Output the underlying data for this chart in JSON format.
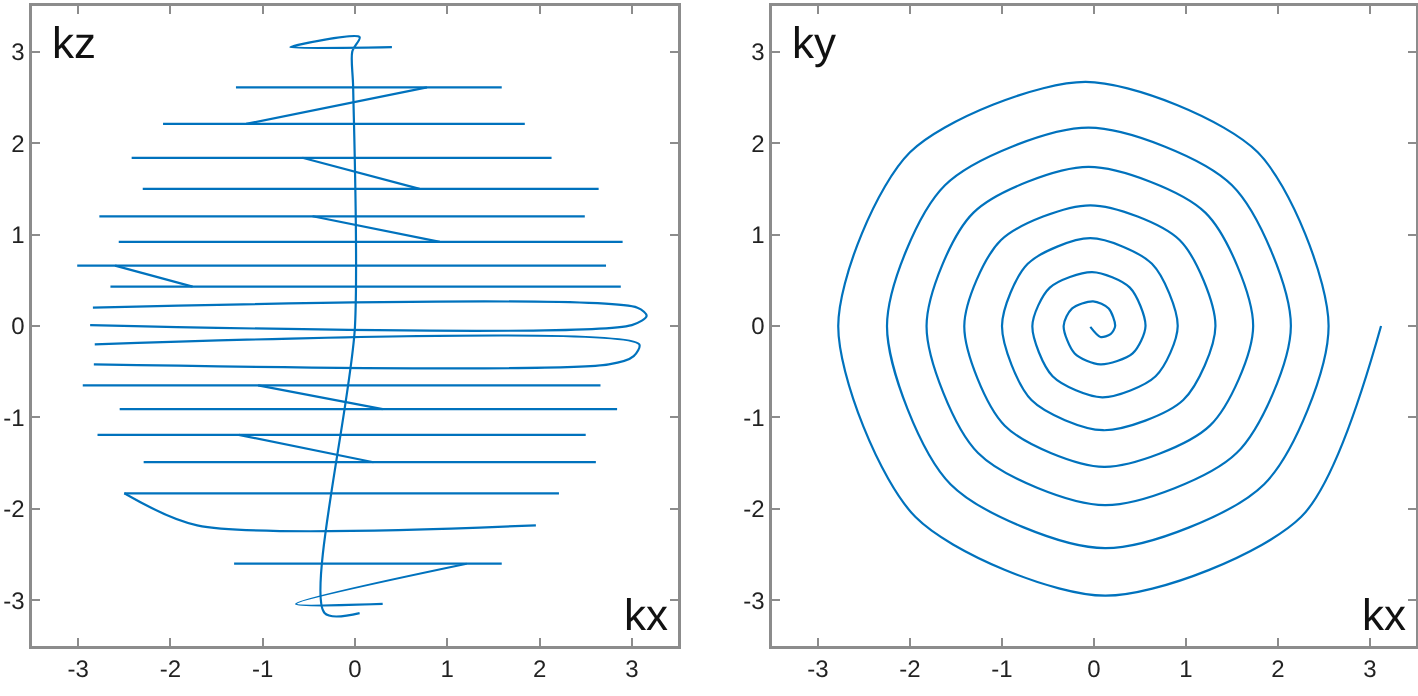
{
  "chart_data": [
    {
      "type": "line",
      "xlabel": "kx",
      "ylabel": "kz",
      "xlim": [
        -3.5,
        3.5
      ],
      "ylim": [
        -3.5,
        3.5
      ],
      "xticks": [
        -3,
        -2,
        -1,
        0,
        1,
        2,
        3
      ],
      "yticks": [
        -3,
        -2,
        -1,
        0,
        1,
        2,
        3
      ],
      "series": [
        {
          "color": "#0072bd",
          "x": [
            0.4,
            -0.7,
            0.05,
            -0.03,
            -0.02,
            0.0,
            -0.33,
            0.05,
            null,
            -1.29,
            1.59,
            null,
            -2.08,
            1.84,
            null,
            -1.18,
            0.78,
            null,
            -2.42,
            2.13,
            null,
            -0.57,
            0.7,
            null,
            -2.3,
            2.64,
            null,
            -2.77,
            2.49,
            null,
            -0.46,
            0.92,
            null,
            -2.56,
            2.9,
            null,
            -3.01,
            2.72,
            null,
            -2.6,
            -1.76,
            null,
            -2.65,
            2.88,
            null,
            -2.84,
            3.06,
            3.16,
            3.0,
            -2.87,
            null,
            -2.82,
            3.08,
            3.02,
            2.75,
            -2.83,
            null,
            -2.95,
            2.66,
            null,
            -1.05,
            0.3,
            null,
            -2.55,
            2.84,
            null,
            -2.79,
            2.5,
            null,
            -1.26,
            0.2,
            null,
            -2.29,
            2.61,
            null,
            -2.5,
            2.21,
            null,
            -2.5,
            -1.71,
            1.96,
            null,
            -1.31,
            1.59,
            null,
            1.21,
            -0.64,
            0.3
          ],
          "values": [
            3.05,
            3.05,
            3.16,
            3.0,
            2.61,
            0.0,
            -3.14,
            -3.14,
            null,
            2.61,
            2.61,
            null,
            2.21,
            2.21,
            null,
            2.21,
            2.61,
            null,
            1.84,
            1.84,
            null,
            1.84,
            1.5,
            null,
            1.5,
            1.5,
            null,
            1.2,
            1.2,
            null,
            1.2,
            0.92,
            null,
            0.92,
            0.92,
            null,
            0.66,
            0.66,
            null,
            0.66,
            0.43,
            null,
            0.43,
            0.43,
            null,
            0.2,
            0.2,
            0.11,
            0.01,
            0.01,
            null,
            -0.2,
            -0.2,
            -0.33,
            -0.42,
            -0.42,
            null,
            -0.65,
            -0.65,
            null,
            -0.65,
            -0.91,
            null,
            -0.91,
            -0.91,
            null,
            -1.19,
            -1.19,
            null,
            -1.19,
            -1.49,
            null,
            -1.49,
            -1.49,
            null,
            -1.83,
            -1.83,
            null,
            -1.83,
            -2.18,
            -2.18,
            null,
            -2.6,
            -2.6,
            null,
            -2.6,
            -3.04,
            -3.04
          ]
        }
      ]
    },
    {
      "type": "line",
      "xlabel": "kx",
      "ylabel": "ky",
      "xlim": [
        -3.5,
        3.5
      ],
      "ylim": [
        -3.5,
        3.5
      ],
      "xticks": [
        -3,
        -2,
        -1,
        0,
        1,
        2,
        3
      ],
      "yticks": [
        -3,
        -2,
        -1,
        0,
        1,
        2,
        3
      ],
      "series": [
        {
          "color": "#0072bd",
          "x": [
            -0.04,
            0.07,
            0.18,
            0.23,
            0.16,
            -0.01,
            -0.24,
            -0.33,
            -0.21,
            0.07,
            0.42,
            0.56,
            0.39,
            -0.02,
            -0.48,
            -0.67,
            -0.45,
            0.09,
            0.67,
            0.91,
            0.63,
            -0.04,
            -0.72,
            -1.0,
            -0.68,
            0.1,
            0.97,
            1.32,
            0.93,
            -0.04,
            -1.01,
            -1.41,
            -0.97,
            0.11,
            1.26,
            1.73,
            1.21,
            -0.06,
            -1.31,
            -1.82,
            -1.26,
            0.12,
            1.55,
            2.14,
            1.5,
            -0.06,
            -1.62,
            -2.25,
            -1.56,
            0.12,
            1.85,
            2.55,
            1.78,
            -0.09,
            -2.0,
            -2.78,
            -1.94,
            0.12,
            2.25,
            3.12
          ],
          "values": [
            -0.01,
            -0.12,
            -0.09,
            0,
            0.19,
            0.27,
            0.19,
            0,
            -0.3,
            -0.42,
            -0.3,
            0,
            0.42,
            0.59,
            0.42,
            0,
            -0.55,
            -0.78,
            -0.55,
            0,
            0.68,
            0.96,
            0.68,
            0,
            -0.81,
            -1.14,
            -0.81,
            0,
            0.94,
            1.32,
            0.94,
            0,
            -1.09,
            -1.54,
            -1.09,
            0,
            1.24,
            1.74,
            1.24,
            0,
            -1.39,
            -1.96,
            -1.39,
            0,
            1.54,
            2.17,
            1.54,
            0,
            -1.73,
            -2.43,
            -1.73,
            0,
            1.9,
            2.67,
            1.9,
            0,
            -2.09,
            -2.95,
            -2.09,
            0
          ]
        }
      ]
    }
  ]
}
